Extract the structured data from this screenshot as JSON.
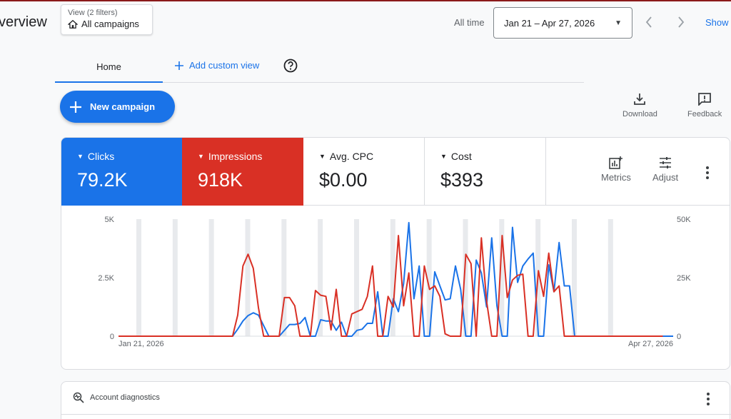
{
  "header": {
    "page_title": "verview",
    "view_filters": "View (2 filters)",
    "view_name": "All campaigns",
    "all_time": "All time",
    "date_range": "Jan 21 – Apr 27, 2026",
    "show": "Show"
  },
  "tabs": [
    {
      "label": "Home",
      "active": true
    },
    {
      "label": "Add custom view",
      "active": false
    }
  ],
  "actions": {
    "new_campaign": "New campaign",
    "download": "Download",
    "feedback": "Feedback"
  },
  "metrics": [
    {
      "name": "Clicks",
      "value": "79.2K",
      "color": "#1a73e8"
    },
    {
      "name": "Impressions",
      "value": "918K",
      "color": "#d93025"
    },
    {
      "name": "Avg. CPC",
      "value": "$0.00"
    },
    {
      "name": "Cost",
      "value": "$393"
    }
  ],
  "metric_tools": {
    "metrics": "Metrics",
    "adjust": "Adjust"
  },
  "diagnostics": {
    "title": "Account diagnostics"
  },
  "chart_data": {
    "type": "line",
    "x_start_label": "Jan 21, 2026",
    "x_end_label": "Apr 27, 2026",
    "y_left_ticks": [
      "0",
      "2.5K",
      "5K"
    ],
    "y_right_ticks": [
      "0",
      "25K",
      "50K"
    ],
    "ylim_left": [
      0,
      5000
    ],
    "ylim_right": [
      0,
      50000
    ],
    "series": [
      {
        "name": "Clicks",
        "axis": "left",
        "color": "#1a73e8",
        "values": [
          0,
          0,
          0,
          0,
          0,
          0,
          0,
          0,
          0,
          0,
          0,
          0,
          0,
          0,
          0,
          0,
          0,
          0,
          0,
          0,
          0,
          0,
          0,
          300,
          650,
          880,
          1000,
          900,
          450,
          0,
          0,
          0,
          250,
          500,
          500,
          550,
          800,
          0,
          0,
          700,
          650,
          650,
          250,
          600,
          0,
          0,
          250,
          300,
          550,
          550,
          1900,
          0,
          0,
          1600,
          1050,
          2250,
          4850,
          1600,
          3000,
          0,
          0,
          2750,
          2150,
          1550,
          1600,
          3000,
          2000,
          0,
          0,
          3250,
          2700,
          1250,
          4200,
          1300,
          0,
          0,
          4650,
          2300,
          3000,
          3300,
          3550,
          0,
          0,
          3050,
          1900,
          4000,
          2150,
          2150,
          0,
          0,
          0,
          0,
          0,
          0,
          0,
          0,
          0,
          0,
          0,
          0,
          0,
          0,
          0,
          0,
          0,
          0,
          0,
          0
        ]
      },
      {
        "name": "Impressions",
        "axis": "right",
        "color": "#d93025",
        "values": [
          0,
          0,
          0,
          0,
          0,
          0,
          0,
          0,
          0,
          0,
          0,
          0,
          0,
          0,
          0,
          0,
          0,
          0,
          0,
          0,
          0,
          0,
          0,
          9000,
          30000,
          35000,
          29000,
          12000,
          0,
          0,
          0,
          0,
          16500,
          16500,
          13000,
          0,
          0,
          0,
          19500,
          17500,
          17000,
          2700,
          20000,
          0,
          0,
          9500,
          10500,
          11500,
          17000,
          30000,
          0,
          0,
          17000,
          12500,
          43000,
          13000,
          27000,
          0,
          0,
          30000,
          20000,
          21500,
          17000,
          1000,
          0,
          0,
          0,
          35000,
          31000,
          0,
          42000,
          15000,
          0,
          0,
          43000,
          16500,
          24000,
          26000,
          26500,
          0,
          0,
          28000,
          17000,
          35500,
          19000,
          21500,
          0,
          0,
          0,
          0,
          0,
          0,
          0,
          0,
          0,
          0,
          0,
          0,
          0,
          0,
          0,
          0,
          0,
          0,
          0,
          0
        ]
      }
    ],
    "grid": false
  }
}
